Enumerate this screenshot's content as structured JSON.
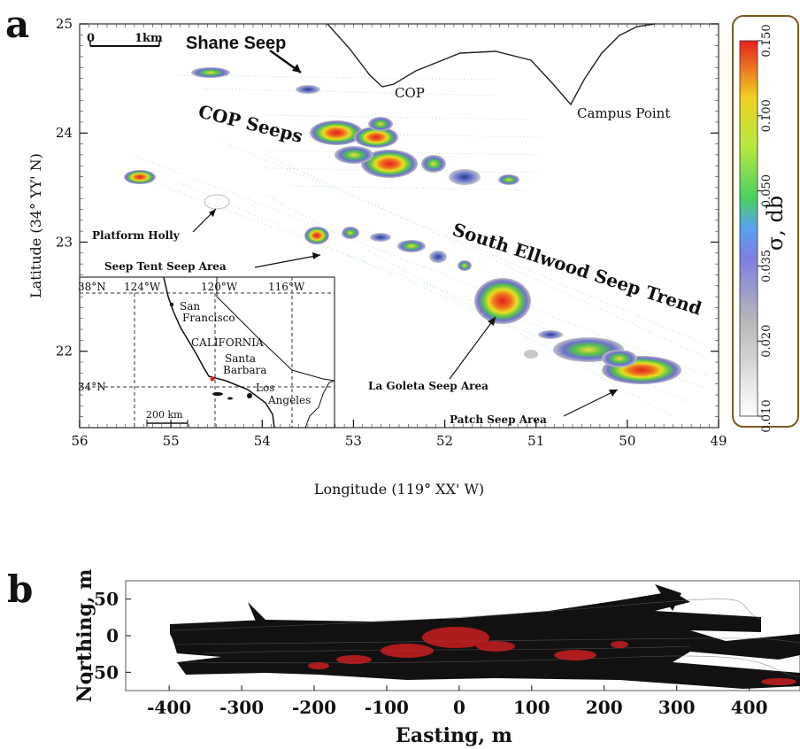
{
  "panel_a": {
    "letter": "a",
    "scale_bar": {
      "zero": "0",
      "label": "1km"
    },
    "annotations": {
      "shane_seep": "Shane Seep",
      "cop": "COP",
      "campus_point": "Campus Point",
      "cop_seeps": "COP Seeps",
      "platform_holly": "Platform Holly",
      "seep_tent": "Seep Tent Seep Area",
      "south_ellwood": "South Ellwood Seep Trend",
      "la_goleta": "La Goleta Seep Area",
      "patch_seep": "Patch Seep Area"
    },
    "colorbar": {
      "label": "σ, db",
      "ticks": [
        "0.150",
        "0.100",
        "0.050",
        "0.035",
        "0.020",
        "0.010"
      ]
    },
    "inset": {
      "lat_labels": [
        "38°N",
        "34°N"
      ],
      "lon_labels": [
        "124°W",
        "120°W",
        "116°W"
      ],
      "places": [
        "San",
        "Francisco",
        "CALIFORNIA",
        "Santa",
        "Barbara",
        "Los",
        "Angeles"
      ],
      "scale": "200 km"
    }
  },
  "panel_b": {
    "letter": "b"
  },
  "chart_data": [
    {
      "type": "heatmap",
      "title": "",
      "xlabel": "Longitude (119° XX' W)",
      "ylabel": "Latitude (34° YY' N)",
      "x_ticks": [
        "56",
        "55",
        "54",
        "53",
        "52",
        "51",
        "50",
        "49"
      ],
      "y_ticks": [
        "25",
        "24",
        "23",
        "22"
      ],
      "xlim": [
        56,
        49
      ],
      "ylim": [
        21.3,
        25
      ],
      "colorbar_ticks": [
        0.15,
        0.1,
        0.05,
        0.035,
        0.02,
        0.01
      ],
      "seep_areas": [
        {
          "name": "Shane Seep",
          "x": 53.5,
          "y": 24.4
        },
        {
          "name": "COP Seeps",
          "x": 52.4,
          "y": 23.8
        },
        {
          "name": "Platform Holly",
          "x": 54.45,
          "y": 23.35
        },
        {
          "name": "Seep Tent Seep Area",
          "x": 53.3,
          "y": 23.0
        },
        {
          "name": "La Goleta Seep Area",
          "x": 51.25,
          "y": 22.45
        },
        {
          "name": "Patch Seep Area",
          "x": 49.9,
          "y": 21.85
        }
      ]
    },
    {
      "type": "heatmap",
      "title": "",
      "xlabel": "Easting, m",
      "ylabel": "Northing, m",
      "x_ticks": [
        "-400",
        "-300",
        "-200",
        "-100",
        "0",
        "100",
        "200",
        "300",
        "400"
      ],
      "y_ticks": [
        "50",
        "0",
        "-50"
      ],
      "xlim": [
        -460,
        470
      ],
      "ylim": [
        -75,
        75
      ]
    }
  ]
}
